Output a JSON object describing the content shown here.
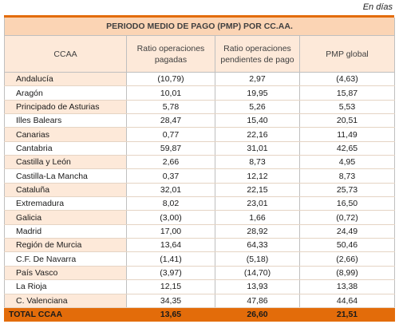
{
  "unit_note": "En días",
  "table": {
    "title": "PERIODO MEDIO DE PAGO (PMP) POR CC.AA.",
    "headers": [
      "CCAA",
      "Ratio operaciones pagadas",
      "Ratio operaciones pendientes de pago",
      "PMP global"
    ],
    "rows": [
      [
        "Andalucía",
        "(10,79)",
        "2,97",
        "(4,63)"
      ],
      [
        "Aragón",
        "10,01",
        "19,95",
        "15,87"
      ],
      [
        "Principado de Asturias",
        "5,78",
        "5,26",
        "5,53"
      ],
      [
        "Illes Balears",
        "28,47",
        "15,40",
        "20,51"
      ],
      [
        "Canarias",
        "0,77",
        "22,16",
        "11,49"
      ],
      [
        "Cantabria",
        "59,87",
        "31,01",
        "42,65"
      ],
      [
        "Castilla y León",
        "2,66",
        "8,73",
        "4,95"
      ],
      [
        "Castilla-La Mancha",
        "0,37",
        "12,12",
        "8,73"
      ],
      [
        "Cataluña",
        "32,01",
        "22,15",
        "25,73"
      ],
      [
        "Extremadura",
        "8,02",
        "23,01",
        "16,50"
      ],
      [
        "Galicia",
        "(3,00)",
        "1,66",
        "(0,72)"
      ],
      [
        "Madrid",
        "17,00",
        "28,92",
        "24,49"
      ],
      [
        "Región de Murcia",
        "13,64",
        "64,33",
        "50,46"
      ],
      [
        "C.F. De Navarra",
        "(1,41)",
        "(5,18)",
        "(2,66)"
      ],
      [
        "País Vasco",
        "(3,97)",
        "(14,70)",
        "(8,99)"
      ],
      [
        "La Rioja",
        "12,15",
        "13,93",
        "13,38"
      ],
      [
        "C. Valenciana",
        "34,35",
        "47,86",
        "44,64"
      ]
    ],
    "total": [
      "TOTAL CCAA",
      "13,65",
      "26,60",
      "21,51"
    ]
  }
}
